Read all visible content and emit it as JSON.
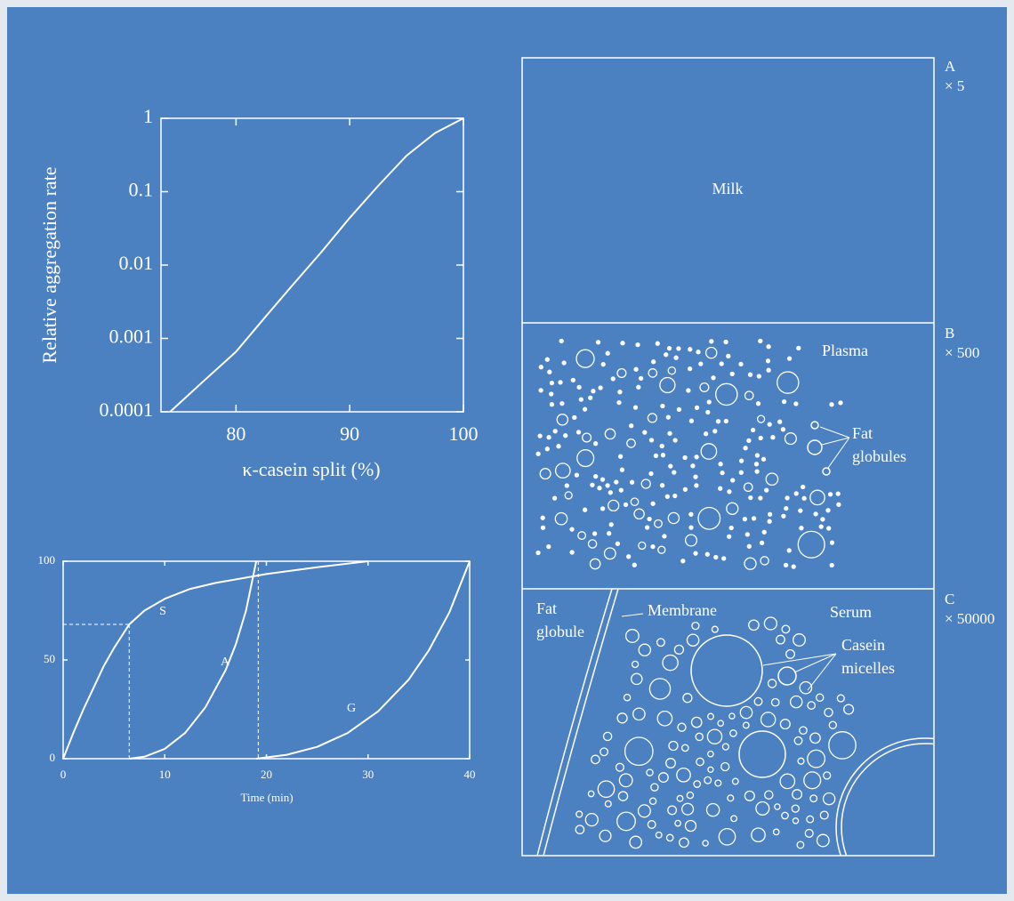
{
  "chart_data": [
    {
      "type": "line",
      "y_label": "Relative aggregation rate",
      "x_label": "κ-casein split (%)",
      "log_scale": "y",
      "xlim": [
        73.4,
        100
      ],
      "ylim": [
        0.0001,
        1
      ],
      "xticks": [
        80,
        90,
        100
      ],
      "yticks": [
        1,
        0.1,
        0.01,
        0.001,
        0.0001
      ],
      "series": [
        {
          "color": "#ffffff",
          "x": [
            74.2,
            77,
            80,
            82.5,
            85,
            87.5,
            90,
            92.5,
            95,
            97.5,
            100
          ],
          "values": [
            0.0001,
            0.00025,
            0.00066,
            0.0019,
            0.0054,
            0.015,
            0.044,
            0.12,
            0.31,
            0.63,
            1
          ]
        }
      ]
    },
    {
      "type": "line",
      "x_label": "Time (min)",
      "xlim": [
        0,
        40
      ],
      "ylim": [
        0,
        100
      ],
      "xticks": [
        0,
        10,
        20,
        30,
        40
      ],
      "yticks": [
        0,
        50,
        100
      ],
      "series": [
        {
          "name": "S",
          "color": "#ffffff",
          "x": [
            0,
            1,
            2,
            3,
            4,
            5,
            6.5,
            8,
            10,
            12.5,
            15,
            20,
            25,
            30
          ],
          "values": [
            0,
            13,
            25,
            36,
            47,
            56,
            68,
            75,
            81,
            86,
            89,
            93.5,
            97,
            100
          ]
        },
        {
          "name": "A",
          "color": "#ffffff",
          "x": [
            6.5,
            8,
            10,
            12,
            14,
            16,
            17,
            18,
            19
          ],
          "values": [
            0,
            1,
            5,
            13,
            26,
            45,
            58,
            75,
            100
          ]
        },
        {
          "name": "G",
          "color": "#ffffff",
          "x": [
            19,
            22,
            25,
            28,
            31,
            34,
            36,
            38,
            40
          ],
          "values": [
            0,
            2,
            6,
            13,
            24,
            40,
            55,
            74,
            100
          ]
        }
      ],
      "guides": [
        {
          "x": 6.5,
          "y": 68
        },
        {
          "x": 19.2,
          "y": 100
        }
      ]
    }
  ],
  "diagram": {
    "panels": [
      {
        "letter": "A",
        "scale": "× 5",
        "texts": [
          [
            "Milk"
          ]
        ]
      },
      {
        "letter": "B",
        "scale": "× 500",
        "texts": [
          [
            "Plasma"
          ],
          [
            "Fat",
            "globules"
          ]
        ]
      },
      {
        "letter": "C",
        "scale": "× 50000",
        "texts": [
          [
            "Fat",
            "globule"
          ],
          [
            "Membrane"
          ],
          [
            "Serum"
          ],
          [
            "Casein",
            "micelles"
          ]
        ]
      }
    ]
  }
}
